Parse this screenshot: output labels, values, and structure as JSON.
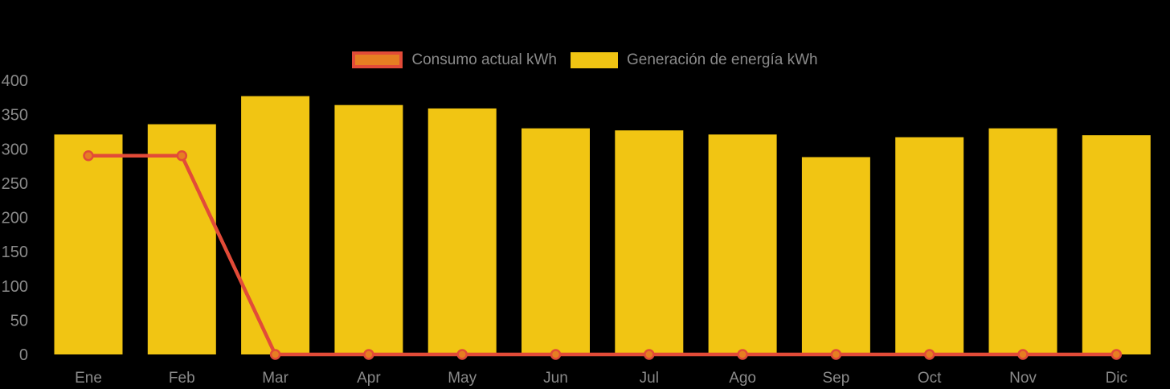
{
  "chart_data": {
    "type": "bar",
    "title": "",
    "categories": [
      "Ene",
      "Feb",
      "Mar",
      "Apr",
      "May",
      "Jun",
      "Jul",
      "Ago",
      "Sep",
      "Oct",
      "Nov",
      "Dic"
    ],
    "series": [
      {
        "name": "Consumo actual kWh",
        "type": "line",
        "values": [
          290,
          290,
          0,
          0,
          0,
          0,
          0,
          0,
          0,
          0,
          0,
          0
        ],
        "line_color": "#e24b38",
        "marker_fill": "#e67e22"
      },
      {
        "name": "Generación de energía kWh",
        "type": "bar",
        "values": [
          321,
          336,
          377,
          364,
          359,
          330,
          327,
          321,
          288,
          317,
          330,
          320
        ],
        "color": "#f1c513"
      }
    ],
    "xlabel": "",
    "ylabel": "",
    "ylim": [
      0,
      400
    ],
    "yticks": [
      0,
      50,
      100,
      150,
      200,
      250,
      300,
      350,
      400
    ],
    "grid": false,
    "legend_position": "top-center",
    "text_color": "#8a8a8a",
    "background_color": "#000000"
  }
}
